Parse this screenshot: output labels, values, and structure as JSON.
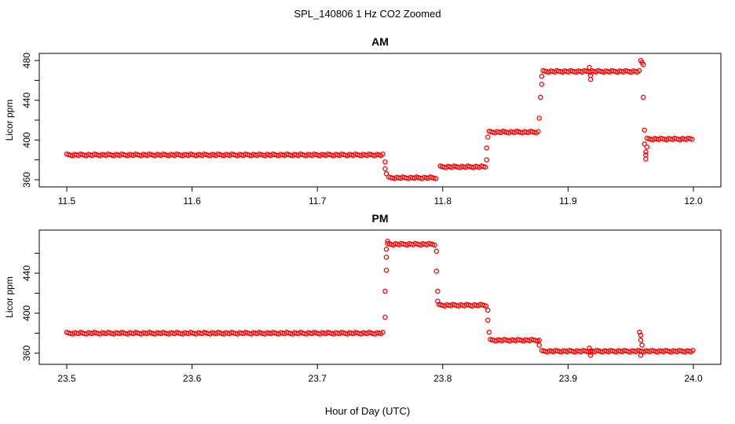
{
  "page": {
    "title": "SPL_140806  1 Hz CO2 Zoomed",
    "xlabel": "Hour of Day (UTC)"
  },
  "colors": {
    "points": "#ff0000",
    "axis": "#000000"
  },
  "chart_data": [
    {
      "type": "scatter",
      "title": "AM",
      "ylabel": "Licor ppm",
      "xlim": [
        11.5,
        12.0
      ],
      "ylim": [
        356,
        484
      ],
      "xticks": [
        11.5,
        11.6,
        11.7,
        11.8,
        11.9,
        12.0
      ],
      "xtick_labels": [
        "11.5",
        "11.6",
        "11.7",
        "11.8",
        "11.9",
        "12.0"
      ],
      "yticks": [
        360,
        400,
        440,
        480
      ],
      "ytick_labels": [
        "360",
        "400",
        "440",
        "480"
      ],
      "series": [
        {
          "marker": "open-circle",
          "segments": [
            {
              "x_start": 11.5,
              "x_end": 11.753,
              "y": 385
            },
            {
              "x_start": 11.757,
              "x_end": 11.796,
              "y": 362
            },
            {
              "x_start": 11.798,
              "x_end": 11.835,
              "y": 373
            },
            {
              "x_start": 11.837,
              "x_end": 11.877,
              "y": 408
            },
            {
              "x_start": 11.88,
              "x_end": 11.958,
              "y": 469
            },
            {
              "x_start": 11.963,
              "x_end": 12.0,
              "y": 401
            }
          ],
          "points": [
            [
              11.754,
              378
            ],
            [
              11.754,
              371
            ],
            [
              11.755,
              366
            ],
            [
              11.835,
              380
            ],
            [
              11.835,
              392
            ],
            [
              11.836,
              403
            ],
            [
              11.877,
              422
            ],
            [
              11.878,
              443
            ],
            [
              11.879,
              456
            ],
            [
              11.879,
              464
            ],
            [
              11.917,
              473
            ],
            [
              11.918,
              465
            ],
            [
              11.918,
              461
            ],
            [
              11.958,
              480
            ],
            [
              11.959,
              478
            ],
            [
              11.96,
              476
            ],
            [
              11.96,
              443
            ],
            [
              11.961,
              410
            ],
            [
              11.961,
              396
            ],
            [
              11.962,
              388
            ],
            [
              11.962,
              385
            ],
            [
              11.962,
              381
            ],
            [
              11.963,
              393
            ]
          ]
        }
      ]
    },
    {
      "type": "scatter",
      "title": "PM",
      "ylabel": "Licor ppm",
      "xlim": [
        23.5,
        24.0
      ],
      "ylim": [
        352,
        480
      ],
      "xticks": [
        23.5,
        23.6,
        23.7,
        23.8,
        23.9,
        24.0
      ],
      "xtick_labels": [
        "23.5",
        "23.6",
        "23.7",
        "23.8",
        "23.9",
        "24.0"
      ],
      "yticks": [
        360,
        400,
        440
      ],
      "ytick_labels": [
        "360",
        "400",
        "440"
      ],
      "series": [
        {
          "marker": "open-circle",
          "segments": [
            {
              "x_start": 23.5,
              "x_end": 23.753,
              "y": 380
            },
            {
              "x_start": 23.756,
              "x_end": 23.794,
              "y": 469
            },
            {
              "x_start": 23.797,
              "x_end": 23.836,
              "y": 408
            },
            {
              "x_start": 23.838,
              "x_end": 23.876,
              "y": 373
            },
            {
              "x_start": 23.879,
              "x_end": 24.0,
              "y": 362
            }
          ],
          "points": [
            [
              23.754,
              396
            ],
            [
              23.754,
              422
            ],
            [
              23.755,
              443
            ],
            [
              23.755,
              456
            ],
            [
              23.755,
              464
            ],
            [
              23.756,
              472
            ],
            [
              23.795,
              462
            ],
            [
              23.795,
              442
            ],
            [
              23.796,
              422
            ],
            [
              23.796,
              412
            ],
            [
              23.836,
              403
            ],
            [
              23.836,
              393
            ],
            [
              23.837,
              381
            ],
            [
              23.877,
              373
            ],
            [
              23.877,
              368
            ],
            [
              23.917,
              365
            ],
            [
              23.918,
              358
            ],
            [
              23.918,
              361
            ],
            [
              23.957,
              381
            ],
            [
              23.958,
              378
            ],
            [
              23.958,
              373
            ],
            [
              23.958,
              358
            ],
            [
              23.959,
              368
            ]
          ]
        }
      ]
    }
  ]
}
